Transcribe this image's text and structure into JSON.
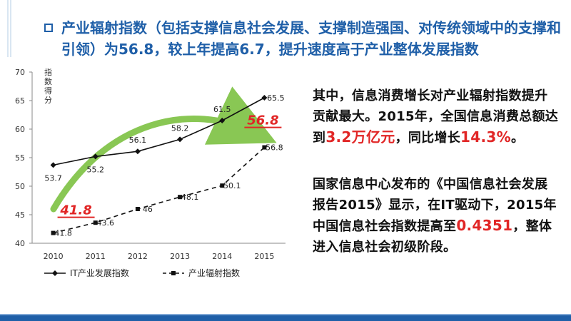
{
  "headline": "产业辐射指数（包括支撑信息社会发展、支撑制造强国、对传统领域中的支撑和引领）为56.8，较上年提高6.7，提升速度高于产业整体发展指数",
  "paragraph1": {
    "a": "其中，信息消费增长对产业辐射指数提升贡献最大。2015年，全国信息消费总额达到",
    "amount": "3.2万亿元",
    "b": "，同比增长",
    "growth": "14.3%",
    "c": "。"
  },
  "paragraph2": {
    "a": "国家信息中心发布的《中国信息社会发展报告2015》显示，在IT驱动下，2015年中国信息社会指数提高至",
    "index": "0.4351",
    "b": "，整体进入信息社会初级阶段。"
  },
  "colors": {
    "accent": "#1f5fa8",
    "highlight": "#e12626",
    "arrow": "#7dc242"
  },
  "chart_data": {
    "type": "line",
    "ylabel": "指数得分",
    "ylim": [
      40,
      70
    ],
    "yticks": [
      40,
      45,
      50,
      55,
      60,
      65,
      70
    ],
    "x": [
      "2010",
      "2011",
      "2012",
      "2013",
      "2014",
      "2015"
    ],
    "series": [
      {
        "name": "IT产业发展指数",
        "values": [
          53.7,
          55.2,
          56.1,
          58.2,
          61.5,
          65.5
        ],
        "labels": [
          "53.7",
          "55.2",
          "56.1",
          "58.2",
          "61.5",
          "65.5"
        ],
        "style": "solid"
      },
      {
        "name": "产业辐射指数",
        "values": [
          41.8,
          43.6,
          46,
          48.1,
          50.1,
          56.8
        ],
        "labels": [
          "41.8",
          "43.6",
          "46",
          "48.1",
          "50.1",
          "56.8"
        ],
        "style": "dashed"
      }
    ],
    "annotations": [
      {
        "text": "41.8",
        "x": "2010",
        "y": 41.8
      },
      {
        "text": "56.8",
        "x": "2015",
        "y": 56.8
      }
    ],
    "legend_position": "bottom"
  }
}
